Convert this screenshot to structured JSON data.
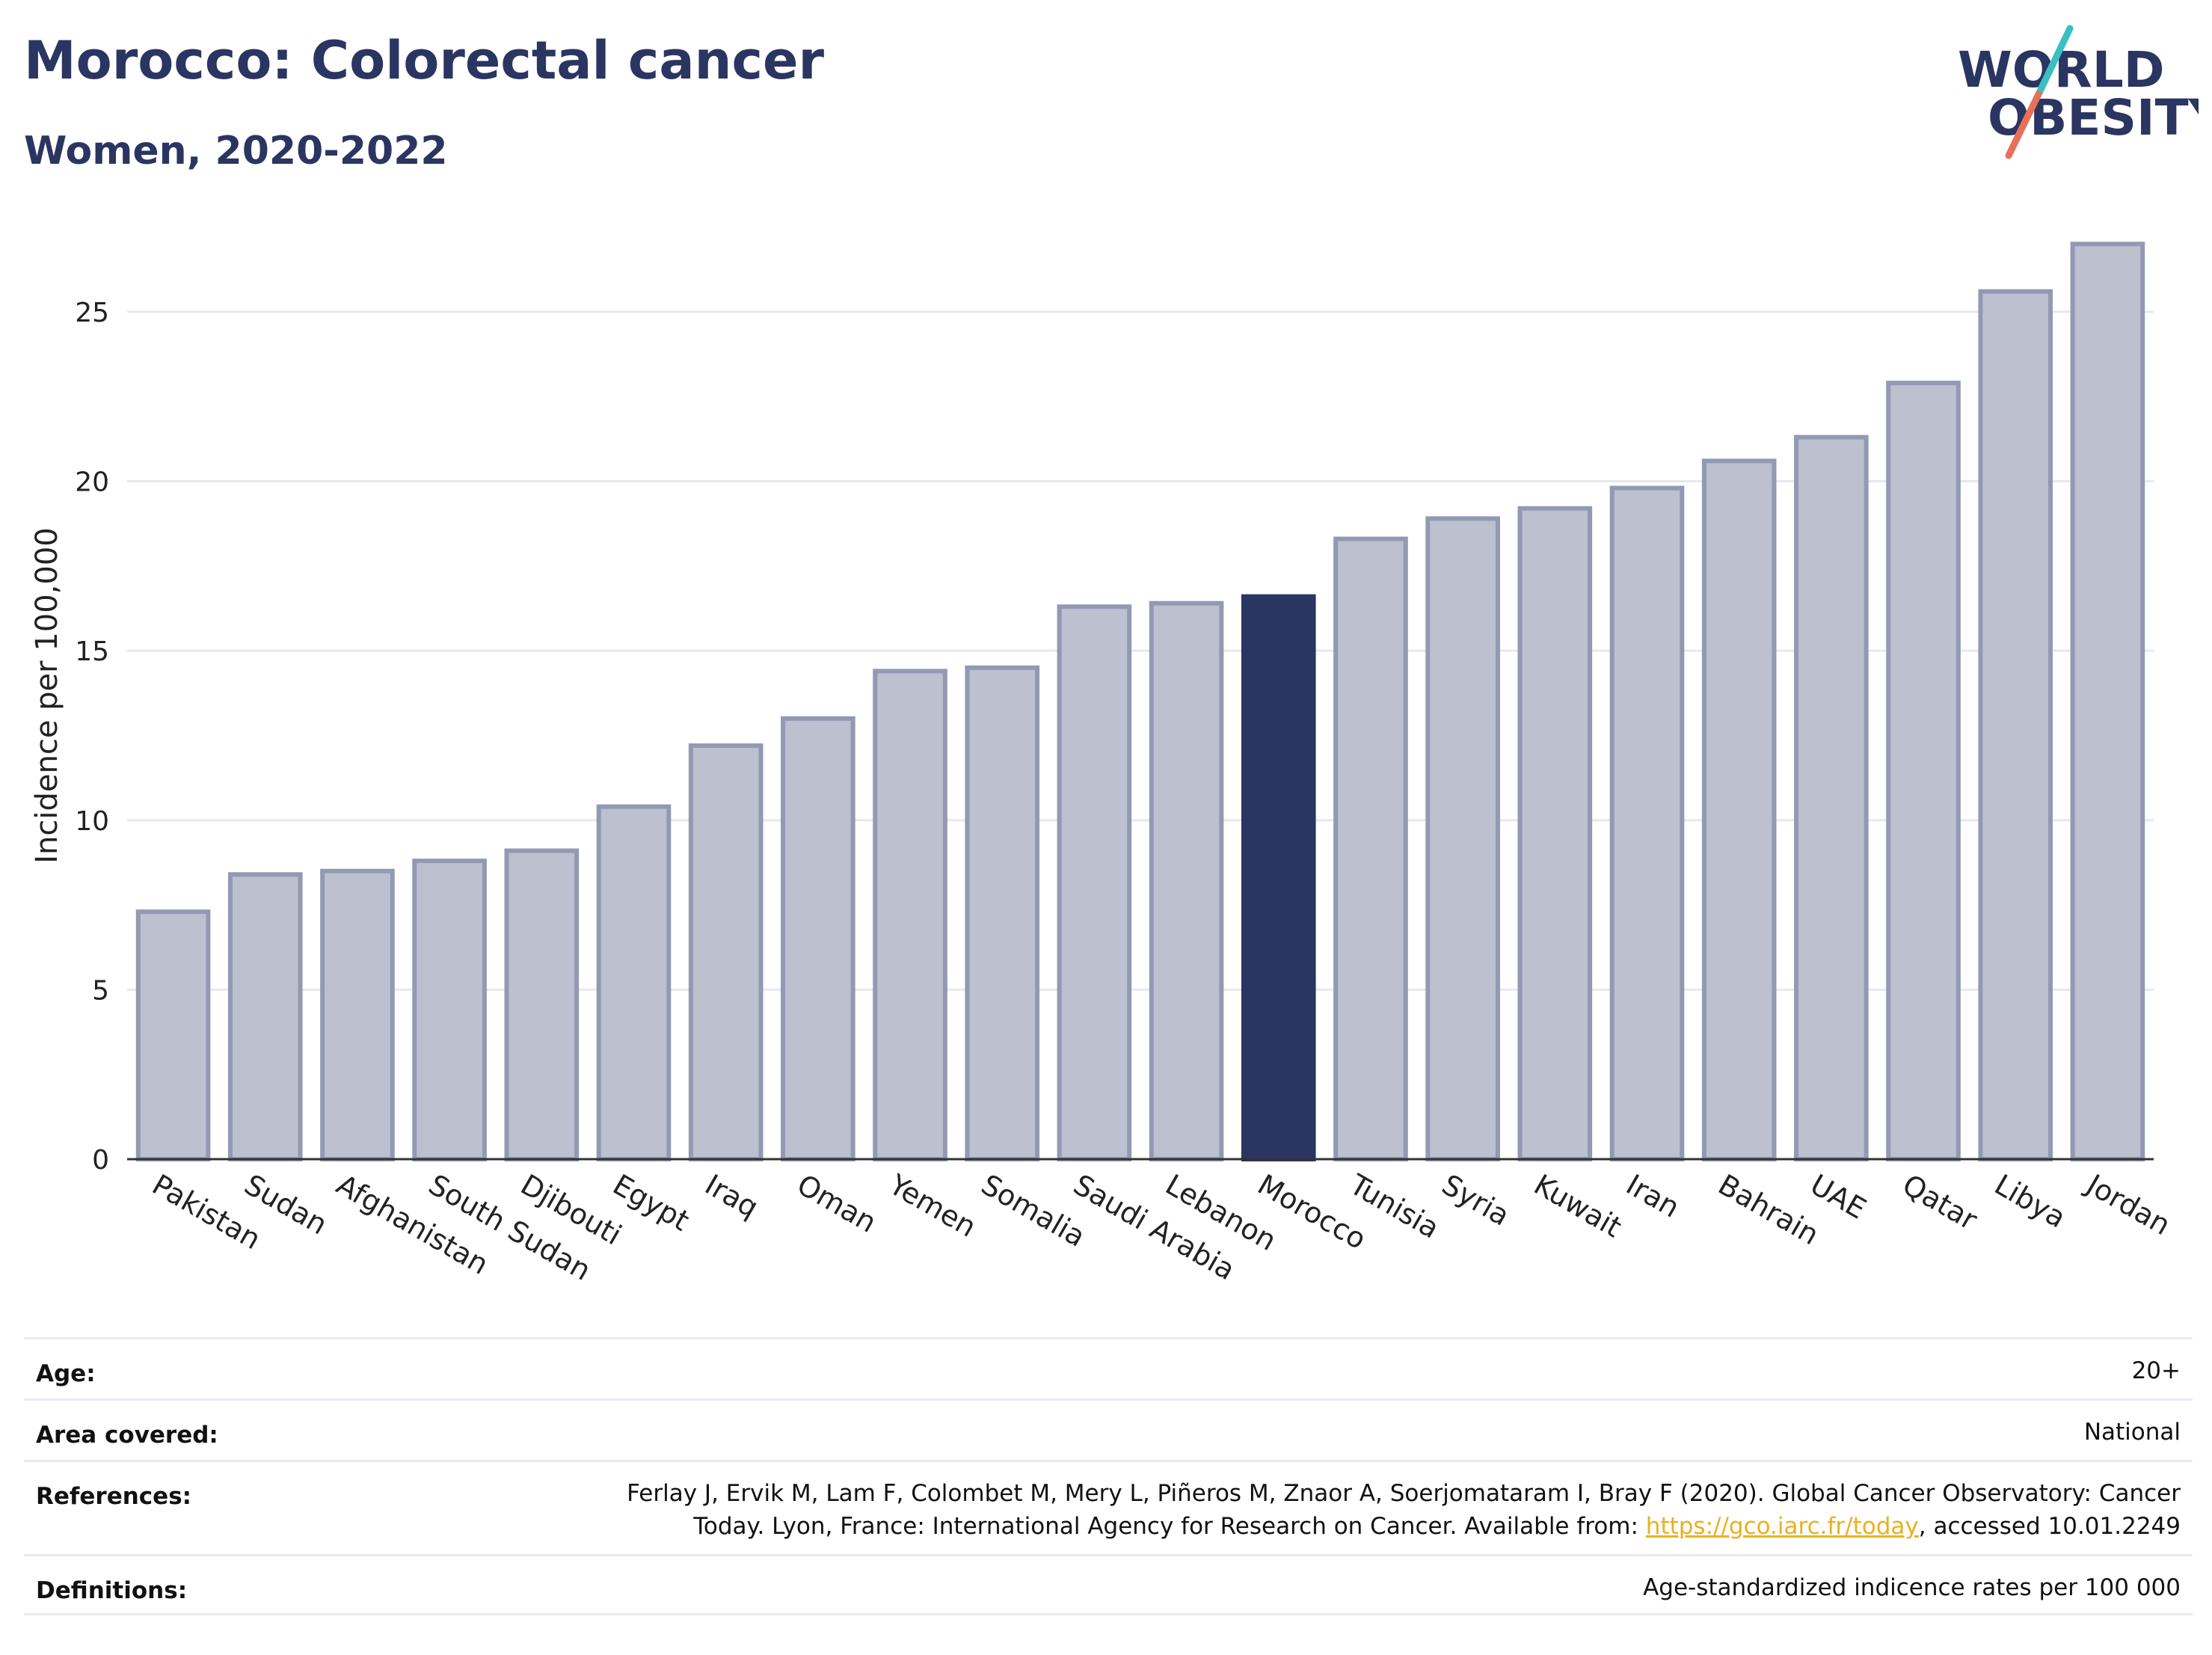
{
  "header": {
    "title": "Morocco: Colorectal cancer",
    "subtitle": "Women, 2020-2022"
  },
  "logo": {
    "line1": "WORLD",
    "line2": "OBESITY",
    "colors": {
      "text": "#2b3561",
      "slash_teal": "#3bbfbf",
      "slash_coral": "#e8705a"
    }
  },
  "chart_data": {
    "type": "bar",
    "categories": [
      "Pakistan",
      "Sudan",
      "Afghanistan",
      "South Sudan",
      "Djibouti",
      "Egypt",
      "Iraq",
      "Oman",
      "Yemen",
      "Somalia",
      "Saudi Arabia",
      "Lebanon",
      "Morocco",
      "Tunisia",
      "Syria",
      "Kuwait",
      "Iran",
      "Bahrain",
      "UAE",
      "Qatar",
      "Libya",
      "Jordan"
    ],
    "values": [
      7.3,
      8.4,
      8.5,
      8.8,
      9.1,
      10.4,
      12.2,
      13.0,
      14.4,
      14.5,
      16.3,
      16.4,
      16.6,
      18.3,
      18.9,
      19.2,
      19.8,
      20.6,
      21.3,
      22.9,
      25.6,
      27.0
    ],
    "highlight": "Morocco",
    "ylabel": "Incidence per 100,000",
    "xlabel": "",
    "ylim": [
      0,
      27.8
    ],
    "yticks": [
      0,
      5,
      10,
      15,
      20,
      25
    ],
    "grid": true,
    "colors": {
      "bar_fill": "#bcc0cf",
      "bar_stroke": "#9399b3",
      "highlight_fill": "#2b3561",
      "grid": "#e5e9ee",
      "axis": "#333333"
    }
  },
  "info": {
    "age_label": "Age:",
    "age_value": "20+",
    "area_label": "Area covered:",
    "area_value": "National",
    "references_label": "References:",
    "references_line1": "Ferlay J, Ervik M, Lam F, Colombet M, Mery L, Piñeros M, Znaor A, Soerjomataram I, Bray F (2020). Global Cancer Observatory: Cancer",
    "references_line2_pre": "Today. Lyon, France: International Agency for Research on Cancer. Available from: ",
    "references_link": "https://gco.iarc.fr/today",
    "references_line2_post": ", accessed 10.01.2249",
    "definitions_label": "Definitions:",
    "definitions_value": "Age-standardized indicence rates per 100 000"
  }
}
